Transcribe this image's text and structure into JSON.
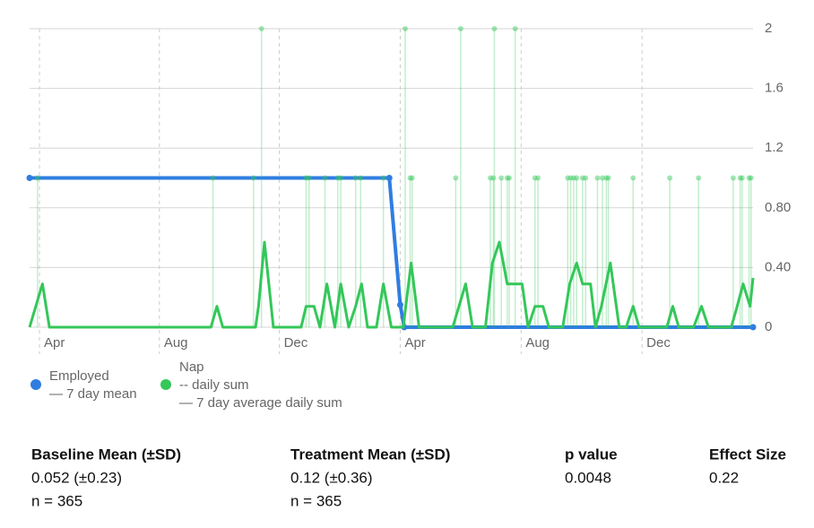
{
  "chart_data": {
    "type": "line",
    "xlim": [
      0,
      730
    ],
    "xticks": [
      {
        "value": 10,
        "label": "Apr"
      },
      {
        "value": 131,
        "label": "Aug"
      },
      {
        "value": 252,
        "label": "Dec"
      },
      {
        "value": 374,
        "label": "Apr"
      },
      {
        "value": 496,
        "label": "Aug"
      },
      {
        "value": 618,
        "label": "Dec"
      }
    ],
    "ylim": [
      0,
      2
    ],
    "yticks": [
      0,
      {
        "value": 0.4,
        "label": "0.40"
      },
      {
        "value": 0.8,
        "label": "0.80"
      },
      1.2,
      1.6,
      2
    ],
    "grid": true,
    "series": [
      {
        "name": "Employed",
        "color": "#2f7de1",
        "legend": [
          "— 7 day mean"
        ],
        "x": [
          0,
          363,
          374,
          378,
          730
        ],
        "values": [
          1,
          1,
          0.15,
          0,
          0
        ]
      },
      {
        "name": "Nap",
        "color": "#34c759",
        "legend": [
          "-- daily sum",
          "— 7 day average daily sum"
        ],
        "daily": {
          "x": [
            8,
            185,
            226,
            234,
            279,
            282,
            298,
            311,
            314,
            329,
            334,
            357,
            379,
            384,
            386,
            430,
            435,
            465,
            468,
            469,
            476,
            482,
            484,
            490,
            510,
            513,
            543,
            546,
            549,
            552,
            558,
            561,
            573,
            578,
            582,
            584,
            609,
            646,
            675,
            710,
            717,
            719,
            726,
            728
          ],
          "values": [
            1,
            1,
            1,
            2,
            1,
            1,
            1,
            1,
            1,
            1,
            1,
            1,
            2,
            1,
            1,
            1,
            2,
            1,
            1,
            2,
            1,
            1,
            1,
            2,
            1,
            1,
            1,
            1,
            1,
            1,
            1,
            1,
            1,
            1,
            1,
            1,
            1,
            1,
            1,
            1,
            1,
            1,
            1,
            1
          ]
        },
        "average": {
          "x": [
            0,
            13,
            20,
            183,
            189,
            195,
            228,
            231,
            237,
            246,
            274,
            279,
            287,
            293,
            300,
            308,
            314,
            322,
            329,
            335,
            341,
            350,
            357,
            365,
            377,
            385,
            393,
            427,
            440,
            447,
            460,
            467,
            474,
            482,
            497,
            503,
            510,
            518,
            524,
            538,
            545,
            552,
            558,
            566,
            571,
            577,
            586,
            595,
            602,
            609,
            615,
            643,
            649,
            655,
            670,
            678,
            685,
            708,
            714,
            720,
            727,
            730
          ],
          "values": [
            0,
            0.29,
            0,
            0,
            0.14,
            0,
            0,
            0.14,
            0.57,
            0,
            0,
            0.14,
            0.14,
            0,
            0.29,
            0,
            0.29,
            0,
            0.14,
            0.29,
            0,
            0,
            0.29,
            0,
            0,
            0.43,
            0,
            0,
            0.29,
            0,
            0,
            0.43,
            0.57,
            0.29,
            0.29,
            0,
            0.14,
            0.14,
            0,
            0,
            0.29,
            0.43,
            0.29,
            0.29,
            0,
            0.14,
            0.43,
            0,
            0,
            0.14,
            0,
            0,
            0.14,
            0,
            0,
            0.14,
            0,
            0,
            0.14,
            0.29,
            0.14,
            0.33
          ]
        }
      }
    ]
  },
  "stats": [
    {
      "label": "Baseline Mean (±SD)",
      "value": "0.052 (±0.23)",
      "n": "n = 365"
    },
    {
      "label": "Treatment Mean (±SD)",
      "value": "0.12 (±0.36)",
      "n": "n = 365"
    },
    {
      "label": "p value",
      "value": "0.0048"
    },
    {
      "label": "Effect Size",
      "value": "0.22"
    }
  ]
}
